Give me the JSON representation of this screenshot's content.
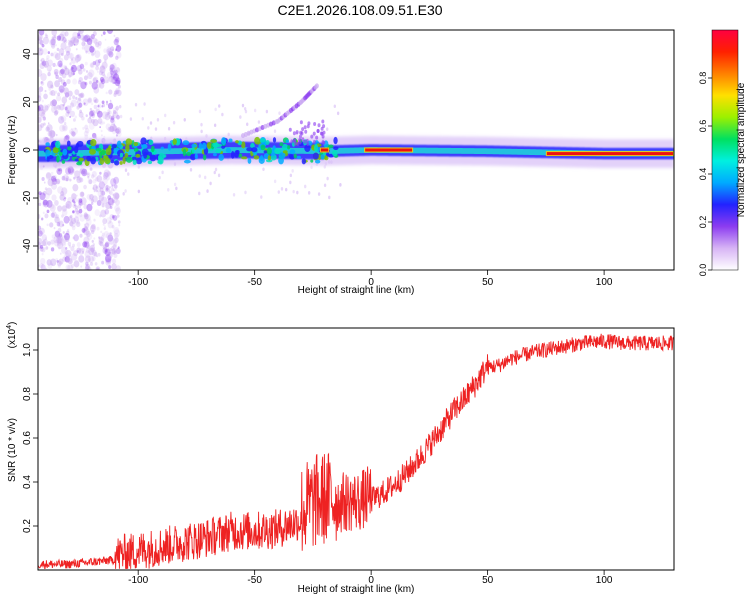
{
  "page_title": "C2E1.2026.108.09.51.E30",
  "chart_data": [
    {
      "type": "heatmap",
      "title": "C2E1.2026.108.09.51.E30",
      "xlabel": "Height of straight line (km)",
      "ylabel": "Frequency (Hz)",
      "xlim": [
        -143,
        130
      ],
      "ylim": [
        -50,
        50
      ],
      "x_ticks": [
        -100,
        -50,
        0,
        50,
        100
      ],
      "y_ticks": [
        -40,
        -20,
        0,
        20,
        40
      ],
      "colorbar": {
        "label": "Normalized spectral amplitude",
        "range": [
          0,
          1
        ],
        "ticks": [
          "0.0",
          "0.2",
          "0.4",
          "0.6",
          "0.8"
        ],
        "colors": [
          "#ffffff",
          "#d7b4f5",
          "#8c3cf0",
          "#2222ff",
          "#00aaff",
          "#00f0e0",
          "#00e060",
          "#9cf000",
          "#ffe000",
          "#ff8000",
          "#ff2000",
          "#ff0040"
        ]
      },
      "main_band": [
        {
          "x": -140,
          "y": -1.5
        },
        {
          "x": -110,
          "y": -1
        },
        {
          "x": -60,
          "y": 0
        },
        {
          "x": -20,
          "y": -0.5
        },
        {
          "x": 0,
          "y": 0
        },
        {
          "x": 50,
          "y": -0.5
        },
        {
          "x": 100,
          "y": -1.5
        },
        {
          "x": 130,
          "y": -1.5
        }
      ],
      "high_amplitude_segments": [
        {
          "x_start": -22,
          "x_end": -18,
          "y": 0
        },
        {
          "x_start": -3,
          "x_end": 18,
          "y": 0
        },
        {
          "x_start": 75,
          "x_end": 130,
          "y": -1.5
        }
      ],
      "upper_harmonic": [
        {
          "x": -55,
          "y": 6
        },
        {
          "x": -40,
          "y": 12
        },
        {
          "x": -30,
          "y": 20
        },
        {
          "x": -23,
          "y": 27
        }
      ]
    },
    {
      "type": "line",
      "xlabel": "Height of straight line (km)",
      "ylabel": "SNR (10 * v/v)",
      "yunit": "(x10^4)",
      "xlim": [
        -143,
        130
      ],
      "ylim": [
        0,
        1.1
      ],
      "x_ticks": [
        -100,
        -50,
        0,
        50,
        100
      ],
      "y_ticks": [
        "0.2",
        "0.4",
        "0.6",
        "0.8",
        "1.0"
      ],
      "series": [
        {
          "color": "#ee2222",
          "x": [
            -143,
            -130,
            -120,
            -110,
            -100,
            -90,
            -80,
            -70,
            -60,
            -50,
            -40,
            -30,
            -25,
            -20,
            -15,
            -10,
            -5,
            0,
            5,
            10,
            15,
            20,
            25,
            30,
            35,
            40,
            45,
            50,
            55,
            60,
            70,
            80,
            90,
            100,
            110,
            120,
            130
          ],
          "y": [
            0.02,
            0.02,
            0.03,
            0.04,
            0.06,
            0.08,
            0.1,
            0.12,
            0.15,
            0.15,
            0.16,
            0.2,
            0.24,
            0.26,
            0.26,
            0.27,
            0.27,
            0.3,
            0.33,
            0.37,
            0.42,
            0.48,
            0.55,
            0.62,
            0.7,
            0.76,
            0.83,
            0.91,
            0.92,
            0.95,
            0.98,
            1.0,
            1.02,
            1.03,
            1.02,
            1.02,
            1.02
          ]
        }
      ]
    }
  ]
}
